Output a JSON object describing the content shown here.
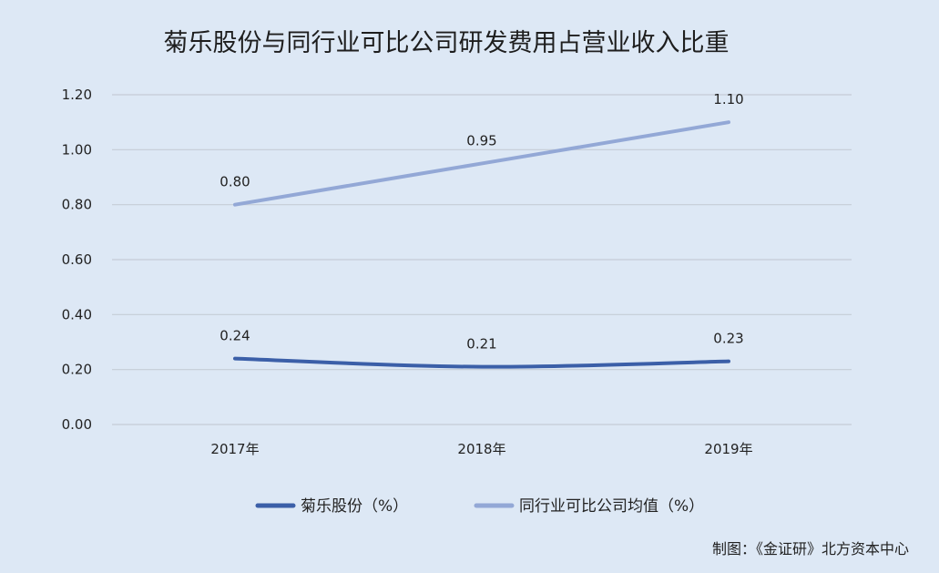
{
  "chart_data": {
    "type": "line",
    "title": "菊乐股份与同行业可比公司研发费用占营业收入比重",
    "categories": [
      "2017年",
      "2018年",
      "2019年"
    ],
    "series": [
      {
        "name": "菊乐股份（%）",
        "values": [
          0.24,
          0.21,
          0.23
        ],
        "labels": [
          "0.24",
          "0.21",
          "0.23"
        ],
        "color": "#3b5fa8"
      },
      {
        "name": "同行业可比公司均值（%）",
        "values": [
          0.8,
          0.95,
          1.1
        ],
        "labels": [
          "0.80",
          "0.95",
          "1.10"
        ],
        "color": "#93a8d6"
      }
    ],
    "yticks": [
      "0.00",
      "0.20",
      "0.40",
      "0.60",
      "0.80",
      "1.00",
      "1.20"
    ],
    "ylim": [
      0,
      1.2
    ],
    "grid": true,
    "legend": "bottom"
  },
  "credit": "制图：《金证研》北方资本中心"
}
